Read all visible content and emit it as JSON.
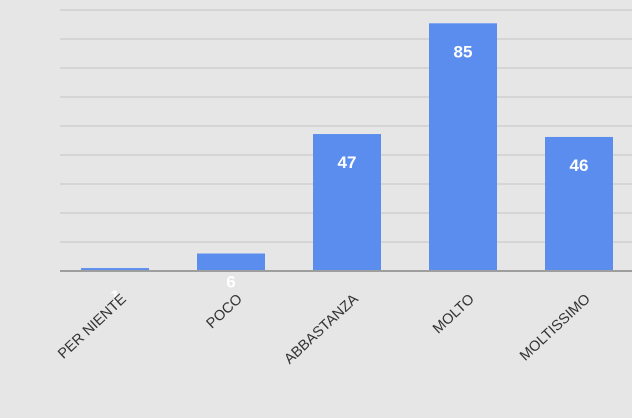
{
  "chart_data": {
    "type": "bar",
    "categories": [
      "PER NIENTE",
      "POCO",
      "ABBASTANZA",
      "MOLTO",
      "MOLTISSIMO"
    ],
    "values": [
      1,
      6,
      47,
      85,
      46
    ],
    "title": "",
    "xlabel": "",
    "ylabel": "",
    "ylim": [
      0,
      93
    ],
    "grid": true,
    "legend": "none",
    "data_labels": true,
    "bar_color": "#5b8def",
    "label_color": "#ffffff",
    "background": "#e6e6e6"
  }
}
